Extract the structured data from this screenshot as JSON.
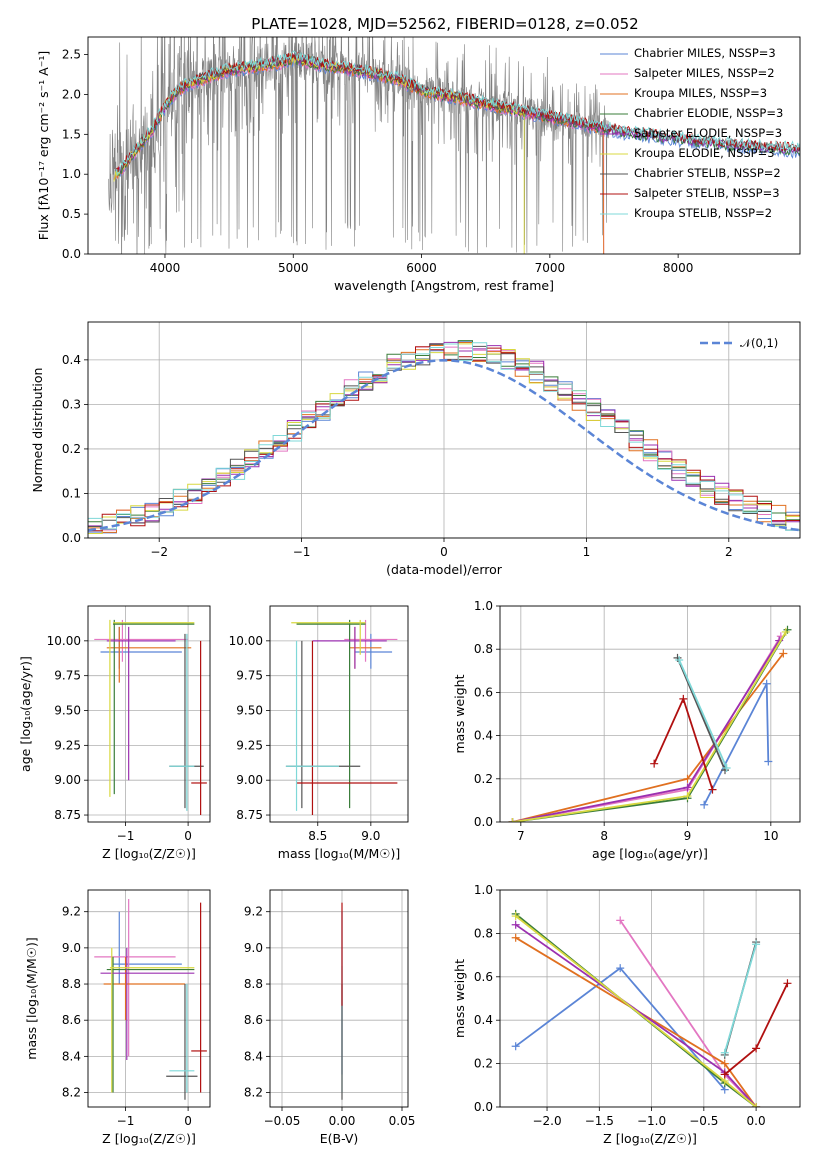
{
  "title": "PLATE=1028, MJD=52562, FIBERID=0128, z=0.052",
  "colors": {
    "data": "#7f7f7f",
    "chabrier_miles": "#5b85d6",
    "salpeter_miles": "#e377c2",
    "kroupa_miles": "#e07020",
    "chabrier_elodie": "#3a7d3a",
    "salpeter_elodie": "#9b30b0",
    "kroupa_elodie": "#d8d840",
    "chabrier_stelib": "#555555",
    "salpeter_stelib": "#b01010",
    "kroupa_stelib": "#7fd8d8",
    "gauss": "#5b85d6"
  },
  "chart_data": [
    {
      "id": "spectrum",
      "type": "line",
      "xlabel": "wavelength [Angstrom, rest frame]",
      "ylabel": "Flux [fλ10⁻¹⁷ erg cm⁻² s⁻¹ A⁻¹]",
      "xlim": [
        3400,
        8950
      ],
      "ylim": [
        0,
        2.72
      ],
      "xticks": [
        "4000",
        "5000",
        "6000",
        "7000",
        "8000"
      ],
      "yticks": [
        "0.0",
        "0.5",
        "1.0",
        "1.5",
        "2.0",
        "2.5"
      ],
      "legend_position": "upper-right",
      "legend": [
        "Chabrier MILES, NSSP=3",
        "Salpeter MILES, NSSP=2",
        "Kroupa MILES, NSSP=3",
        "Chabrier ELODIE, NSSP=3",
        "Salpeter ELODIE, NSSP=3",
        "Kroupa ELODIE, NSSP=3",
        "Chabrier STELIB, NSSP=2",
        "Salpeter STELIB, NSSP=3",
        "Kroupa STELIB, NSSP=2"
      ],
      "model_shape": {
        "x": [
          3600,
          3700,
          3800,
          3900,
          4000,
          4100,
          4200,
          4300,
          4400,
          4500,
          4700,
          4900,
          5000,
          5200,
          5500,
          5800,
          6000,
          6300,
          6600,
          6900,
          7200,
          7400,
          7600,
          7800,
          8000,
          8200,
          8400,
          8600,
          8800,
          8950
        ],
        "y": [
          0.95,
          1.15,
          1.35,
          1.55,
          1.85,
          2.05,
          2.15,
          2.2,
          2.25,
          2.3,
          2.35,
          2.4,
          2.45,
          2.38,
          2.3,
          2.2,
          2.05,
          1.95,
          1.85,
          1.75,
          1.65,
          1.58,
          1.52,
          1.48,
          1.44,
          1.4,
          1.37,
          1.34,
          1.32,
          1.3
        ]
      }
    },
    {
      "id": "residuals",
      "type": "histogram",
      "xlabel": "(data-model)/error",
      "ylabel": "Normed distribution",
      "xlim": [
        -2.5,
        2.5
      ],
      "ylim": [
        0,
        0.485
      ],
      "xticks": [
        "−2",
        "−1",
        "0",
        "1",
        "2"
      ],
      "yticks": [
        "0.0",
        "0.1",
        "0.2",
        "0.3",
        "0.4"
      ],
      "legend": [
        "𝒩(0,1)"
      ],
      "legend_position": "upper-right",
      "bin_width": 0.1
    },
    {
      "id": "age-vs-z",
      "type": "errorbar",
      "xlabel": "Z [log₁₀(Z/Z☉)]",
      "ylabel": "age  [log₁₀(age/yr)]",
      "xlim": [
        -1.6,
        0.35
      ],
      "ylim": [
        8.7,
        10.25
      ],
      "xticks": [
        "−1",
        "0"
      ],
      "yticks": [
        "8.75",
        "9.00",
        "9.25",
        "9.50",
        "9.75",
        "10.00"
      ]
    },
    {
      "id": "age-vs-mass",
      "type": "errorbar",
      "xlabel": "mass [log₁₀(M/M☉)]",
      "ylabel": "",
      "xlim": [
        8.05,
        9.35
      ],
      "ylim": [
        8.7,
        10.25
      ],
      "xticks": [
        "8.5",
        "9.0"
      ],
      "yticks": [
        "8.75",
        "9.00",
        "9.25",
        "9.50",
        "9.75",
        "10.00"
      ]
    },
    {
      "id": "weight-vs-age",
      "type": "line",
      "xlabel": "age  [log₁₀(age/yr)]",
      "ylabel": "mass weight",
      "xlim": [
        6.75,
        10.35
      ],
      "ylim": [
        0,
        1.0
      ],
      "xticks": [
        "7",
        "8",
        "9",
        "10"
      ],
      "yticks": [
        "0.0",
        "0.2",
        "0.4",
        "0.6",
        "0.8",
        "1.0"
      ]
    },
    {
      "id": "mass-vs-z",
      "type": "errorbar",
      "xlabel": "Z [log₁₀(Z/Z☉)]",
      "ylabel": "mass [log₁₀(M/M☉)]",
      "xlim": [
        -1.6,
        0.35
      ],
      "ylim": [
        8.12,
        9.32
      ],
      "xticks": [
        "−1",
        "0"
      ],
      "yticks": [
        "8.2",
        "8.4",
        "8.6",
        "8.8",
        "9.0",
        "9.2"
      ]
    },
    {
      "id": "mass-vs-ebv",
      "type": "errorbar",
      "xlabel": "E(B-V)",
      "ylabel": "",
      "xlim": [
        -0.06,
        0.055
      ],
      "ylim": [
        8.12,
        9.32
      ],
      "xticks": [
        "−0.05",
        "0.00",
        "0.05"
      ],
      "yticks": [
        "8.2",
        "8.4",
        "8.6",
        "8.8",
        "9.0",
        "9.2"
      ]
    },
    {
      "id": "weight-vs-z",
      "type": "line",
      "xlabel": "Z [log₁₀(Z/Z☉)]",
      "ylabel": "mass weight",
      "xlim": [
        -2.45,
        0.42
      ],
      "ylim": [
        0,
        1.0
      ],
      "xticks": [
        "−2.0",
        "−1.5",
        "−1.0",
        "−0.5",
        "0.0"
      ],
      "yticks": [
        "0.0",
        "0.2",
        "0.4",
        "0.6",
        "0.8",
        "1.0"
      ]
    }
  ]
}
